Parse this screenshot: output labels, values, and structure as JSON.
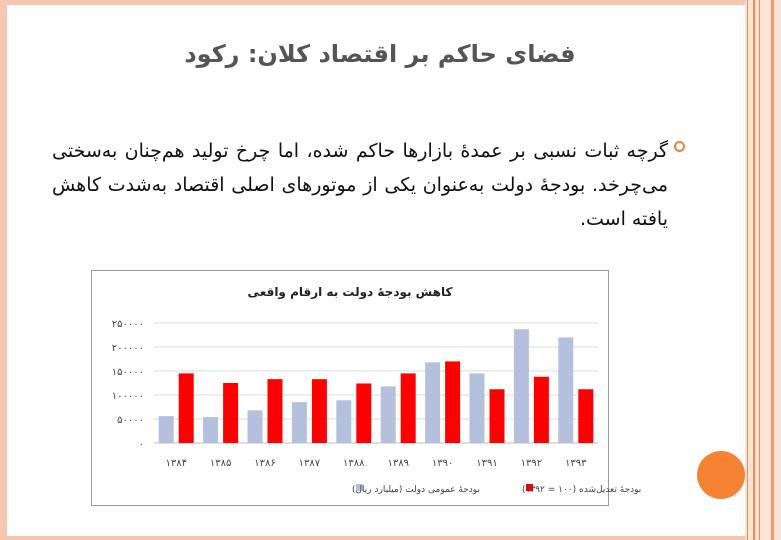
{
  "slide": {
    "title": "فضای حاکم بر اقتصاد کلان: رکود",
    "body": "گرچه ثبات نسبی بر عمدهٔ بازارها حاکم شده، اما چرخ تولید هم‌چنان به‌سختی می‌چرخد. بودجهٔ دولت به‌عنوان یکی از موتورهای اصلی اقتصاد به‌شدت کاهش یافته است."
  },
  "colors": {
    "series_nominal": "#b4c0dc",
    "series_real": "#ff0000",
    "accent": "#f58232"
  },
  "chart_data": {
    "type": "bar",
    "title": "کاهش بودجهٔ دولت به ارقام واقعی",
    "xlabel": "",
    "ylabel": "",
    "ylim": [
      0,
      250000
    ],
    "yticks": [
      {
        "value": 0,
        "label": "۰"
      },
      {
        "value": 50000,
        "label": "۵۰۰۰۰"
      },
      {
        "value": 100000,
        "label": "۱۰۰۰۰۰"
      },
      {
        "value": 150000,
        "label": "۱۵۰۰۰۰"
      },
      {
        "value": 200000,
        "label": "۲۰۰۰۰۰"
      },
      {
        "value": 250000,
        "label": "۲۵۰۰۰۰"
      }
    ],
    "categories": [
      "۱۳۸۴",
      "۱۳۸۵",
      "۱۳۸۶",
      "۱۳۸۷",
      "۱۳۸۸",
      "۱۳۸۹",
      "۱۳۹۰",
      "۱۳۹۱",
      "۱۳۹۲",
      "۱۳۹۳"
    ],
    "series": [
      {
        "name": "بودجهٔ عمومی دولت (میلیارد ریال)",
        "color": "#b4c0dc",
        "values": [
          56000,
          54000,
          68000,
          85000,
          89000,
          118000,
          168000,
          145000,
          237000,
          220000
        ]
      },
      {
        "name": "بودجهٔ تعدیل‌شده (۱۰۰ = ۱۳۹۲)",
        "color": "#ff0000",
        "values": [
          145000,
          125000,
          133000,
          133000,
          124000,
          145000,
          170000,
          112000,
          138000,
          112000
        ]
      }
    ],
    "grid": true,
    "legend": "bottom"
  }
}
